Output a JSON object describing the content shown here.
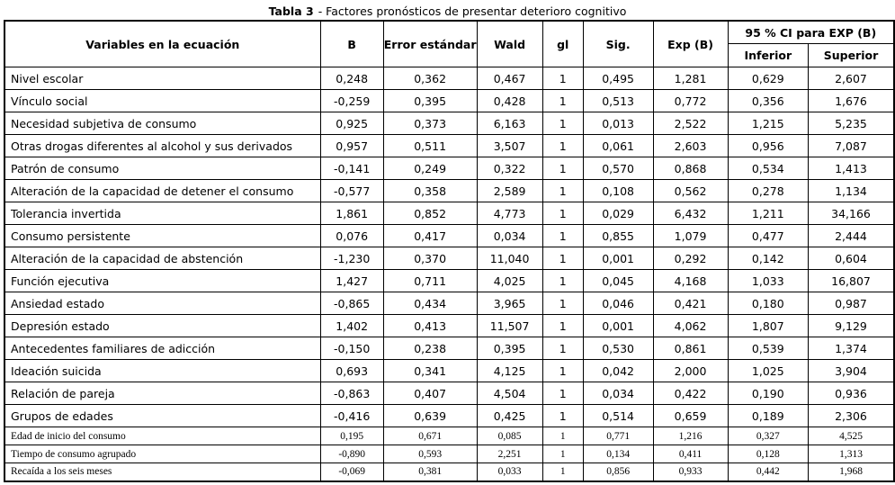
{
  "title": {
    "label": "Tabla 3",
    "text": "- Factores pronósticos de presentar deterioro cognitivo"
  },
  "table": {
    "columns": [
      "Variables en la ecuación",
      "B",
      "Error estándar",
      "Wald",
      "gl",
      "Sig.",
      "Exp (B)"
    ],
    "ci_group_header": "95 % CI para EXP (B)",
    "ci_subcolumns": [
      "Inferior",
      "Superior"
    ],
    "rows": [
      {
        "variable": "Nivel escolar",
        "b": "0,248",
        "error": "0,362",
        "wald": "0,467",
        "gl": "1",
        "sig": "0,495",
        "exp_b": "1,281",
        "inferior": "0,629",
        "superior": "2,607",
        "group": "main"
      },
      {
        "variable": "Vínculo social",
        "b": "-0,259",
        "error": "0,395",
        "wald": "0,428",
        "gl": "1",
        "sig": "0,513",
        "exp_b": "0,772",
        "inferior": "0,356",
        "superior": "1,676",
        "group": "main"
      },
      {
        "variable": "Necesidad subjetiva de consumo",
        "b": "0,925",
        "error": "0,373",
        "wald": "6,163",
        "gl": "1",
        "sig": "0,013",
        "exp_b": "2,522",
        "inferior": "1,215",
        "superior": "5,235",
        "group": "main"
      },
      {
        "variable": "Otras drogas diferentes al alcohol y sus derivados",
        "b": "0,957",
        "error": "0,511",
        "wald": "3,507",
        "gl": "1",
        "sig": "0,061",
        "exp_b": "2,603",
        "inferior": "0,956",
        "superior": "7,087",
        "group": "main"
      },
      {
        "variable": "Patrón de consumo",
        "b": "-0,141",
        "error": "0,249",
        "wald": "0,322",
        "gl": "1",
        "sig": "0,570",
        "exp_b": "0,868",
        "inferior": "0,534",
        "superior": "1,413",
        "group": "main"
      },
      {
        "variable": "Alteración de la capacidad de detener el consumo",
        "b": "-0,577",
        "error": "0,358",
        "wald": "2,589",
        "gl": "1",
        "sig": "0,108",
        "exp_b": "0,562",
        "inferior": "0,278",
        "superior": "1,134",
        "group": "main"
      },
      {
        "variable": "Tolerancia invertida",
        "b": "1,861",
        "error": "0,852",
        "wald": "4,773",
        "gl": "1",
        "sig": "0,029",
        "exp_b": "6,432",
        "inferior": "1,211",
        "superior": "34,166",
        "group": "main"
      },
      {
        "variable": "Consumo persistente",
        "b": "0,076",
        "error": "0,417",
        "wald": "0,034",
        "gl": "1",
        "sig": "0,855",
        "exp_b": "1,079",
        "inferior": "0,477",
        "superior": "2,444",
        "group": "main"
      },
      {
        "variable": "Alteración de la capacidad de abstención",
        "b": "-1,230",
        "error": "0,370",
        "wald": "11,040",
        "gl": "1",
        "sig": "0,001",
        "exp_b": "0,292",
        "inferior": "0,142",
        "superior": "0,604",
        "group": "main"
      },
      {
        "variable": "Función ejecutiva",
        "b": "1,427",
        "error": "0,711",
        "wald": "4,025",
        "gl": "1",
        "sig": "0,045",
        "exp_b": "4,168",
        "inferior": "1,033",
        "superior": "16,807",
        "group": "main"
      },
      {
        "variable": "Ansiedad estado",
        "b": "-0,865",
        "error": "0,434",
        "wald": "3,965",
        "gl": "1",
        "sig": "0,046",
        "exp_b": "0,421",
        "inferior": "0,180",
        "superior": "0,987",
        "group": "main"
      },
      {
        "variable": "Depresión estado",
        "b": "1,402",
        "error": "0,413",
        "wald": "11,507",
        "gl": "1",
        "sig": "0,001",
        "exp_b": "4,062",
        "inferior": "1,807",
        "superior": "9,129",
        "group": "main"
      },
      {
        "variable": "Antecedentes familiares de adicción",
        "b": "-0,150",
        "error": "0,238",
        "wald": "0,395",
        "gl": "1",
        "sig": "0,530",
        "exp_b": "0,861",
        "inferior": "0,539",
        "superior": "1,374",
        "group": "main"
      },
      {
        "variable": "Ideación suicida",
        "b": "0,693",
        "error": "0,341",
        "wald": "4,125",
        "gl": "1",
        "sig": "0,042",
        "exp_b": "2,000",
        "inferior": "1,025",
        "superior": "3,904",
        "group": "main"
      },
      {
        "variable": "Relación de pareja",
        "b": "-0,863",
        "error": "0,407",
        "wald": "4,504",
        "gl": "1",
        "sig": "0,034",
        "exp_b": "0,422",
        "inferior": "0,190",
        "superior": "0,936",
        "group": "main"
      },
      {
        "variable": "Grupos de edades",
        "b": "-0,416",
        "error": "0,639",
        "wald": "0,425",
        "gl": "1",
        "sig": "0,514",
        "exp_b": "0,659",
        "inferior": "0,189",
        "superior": "2,306",
        "group": "main"
      },
      {
        "variable": "Edad de inicio del consumo",
        "b": "0,195",
        "error": "0,671",
        "wald": "0,085",
        "gl": "1",
        "sig": "0,771",
        "exp_b": "1,216",
        "inferior": "0,327",
        "superior": "4,525",
        "group": "small"
      },
      {
        "variable": "Tiempo de consumo agrupado",
        "b": "-0,890",
        "error": "0,593",
        "wald": "2,251",
        "gl": "1",
        "sig": "0,134",
        "exp_b": "0,411",
        "inferior": "0,128",
        "superior": "1,313",
        "group": "small"
      },
      {
        "variable": "Recaída a los seis meses",
        "b": "-0,069",
        "error": "0,381",
        "wald": "0,033",
        "gl": "1",
        "sig": "0,856",
        "exp_b": "0,933",
        "inferior": "0,442",
        "superior": "1,968",
        "group": "small"
      }
    ]
  },
  "colors": {
    "text": "#000000",
    "border": "#000000",
    "background": "#ffffff"
  }
}
